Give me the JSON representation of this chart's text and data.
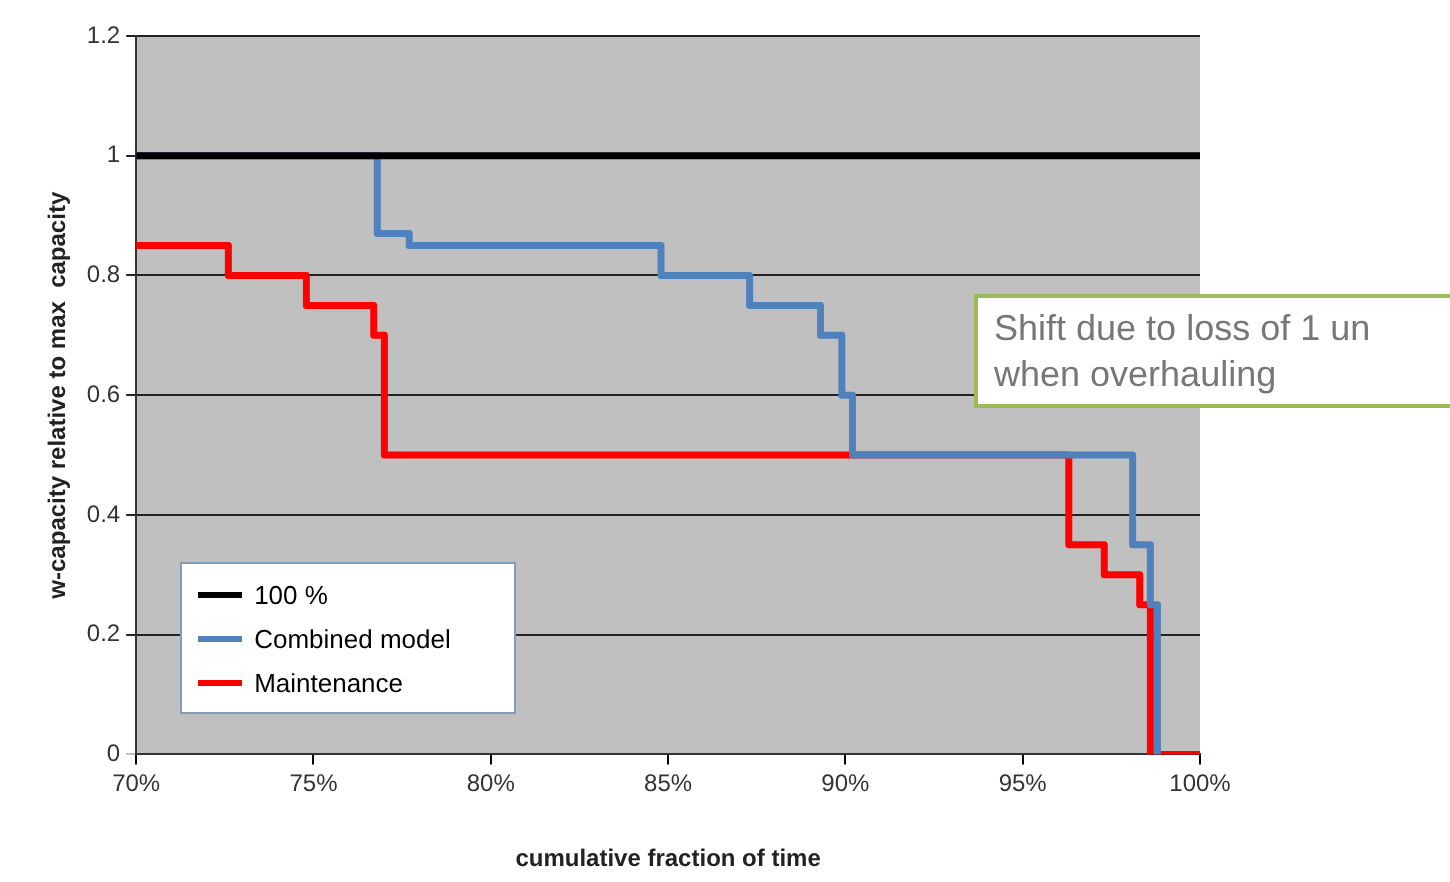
{
  "chart_data": {
    "type": "step",
    "xlabel": "cumulative fraction of time",
    "ylabel": "w-capacity relative to max  capacity",
    "xlim": [
      70,
      100
    ],
    "xticks": [
      {
        "value": 70,
        "label": "70%"
      },
      {
        "value": 75,
        "label": "75%"
      },
      {
        "value": 80,
        "label": "80%"
      },
      {
        "value": 85,
        "label": "85%"
      },
      {
        "value": 90,
        "label": "90%"
      },
      {
        "value": 95,
        "label": "95%"
      },
      {
        "value": 100,
        "label": "100%"
      }
    ],
    "ylim": [
      0,
      1.2
    ],
    "yticks": [
      0,
      0.2,
      0.4,
      0.6,
      0.8,
      1,
      1.2
    ],
    "grid": "y",
    "legend": "bottom left",
    "marker": "none",
    "annotations": [
      "Shift due to loss of 1 un\nwhen overhauling"
    ],
    "series": [
      {
        "name": "100 %",
        "color": "#000000",
        "x": [
          70,
          100
        ],
        "values": [
          1,
          1
        ]
      },
      {
        "name": "Combined model",
        "color": "#4f81bd",
        "x": [
          70,
          76.8,
          77.7,
          84.8,
          87.3,
          89.3,
          89.9,
          90.2,
          98.1,
          98.6,
          98.8
        ],
        "values": [
          1,
          0.87,
          0.85,
          0.8,
          0.75,
          0.7,
          0.6,
          0.5,
          0.35,
          0.25,
          0
        ]
      },
      {
        "name": "Maintenance",
        "color": "#ff0000",
        "x": [
          70,
          72.6,
          74.8,
          76.7,
          77.0,
          96.3,
          97.3,
          98.3,
          98.6,
          100
        ],
        "values": [
          0.85,
          0.8,
          0.75,
          0.7,
          0.5,
          0.35,
          0.3,
          0.25,
          0,
          0
        ]
      }
    ]
  }
}
